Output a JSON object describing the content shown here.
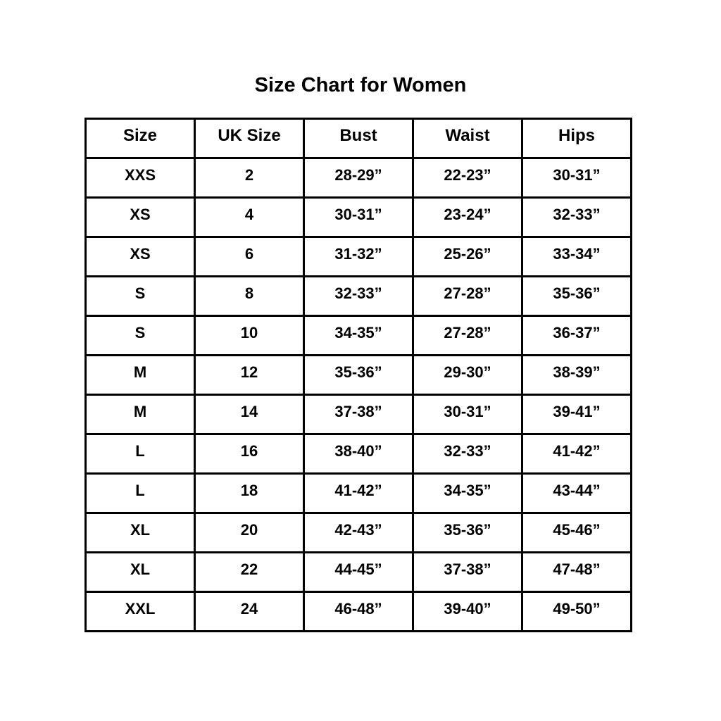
{
  "title": "Size Chart for Women",
  "table": {
    "headers": [
      "Size",
      "UK Size",
      "Bust",
      "Waist",
      "Hips"
    ],
    "rows": [
      [
        "XXS",
        "2",
        "28-29”",
        "22-23”",
        "30-31”"
      ],
      [
        "XS",
        "4",
        "30-31”",
        "23-24”",
        "32-33”"
      ],
      [
        "XS",
        "6",
        "31-32”",
        "25-26”",
        "33-34”"
      ],
      [
        "S",
        "8",
        "32-33”",
        "27-28”",
        "35-36”"
      ],
      [
        "S",
        "10",
        "34-35”",
        "27-28”",
        "36-37”"
      ],
      [
        "M",
        "12",
        "35-36”",
        "29-30”",
        "38-39”"
      ],
      [
        "M",
        "14",
        "37-38”",
        "30-31”",
        "39-41”"
      ],
      [
        "L",
        "16",
        "38-40”",
        "32-33”",
        "41-42”"
      ],
      [
        "L",
        "18",
        "41-42”",
        "34-35”",
        "43-44”"
      ],
      [
        "XL",
        "20",
        "42-43”",
        "35-36”",
        "45-46”"
      ],
      [
        "XL",
        "22",
        "44-45”",
        "37-38”",
        "47-48”"
      ],
      [
        "XXL",
        "24",
        "46-48”",
        "39-40”",
        "49-50”"
      ]
    ]
  },
  "chart_data": {
    "type": "table",
    "title": "Size Chart for Women",
    "columns": [
      "Size",
      "UK Size",
      "Bust",
      "Waist",
      "Hips"
    ],
    "rows": [
      {
        "size": "XXS",
        "uk_size": "2",
        "bust": "28-29”",
        "waist": "22-23”",
        "hips": "30-31”"
      },
      {
        "size": "XS",
        "uk_size": "4",
        "bust": "30-31”",
        "waist": "23-24”",
        "hips": "32-33”"
      },
      {
        "size": "XS",
        "uk_size": "6",
        "bust": "31-32”",
        "waist": "25-26”",
        "hips": "33-34”"
      },
      {
        "size": "S",
        "uk_size": "8",
        "bust": "32-33”",
        "waist": "27-28”",
        "hips": "35-36”"
      },
      {
        "size": "S",
        "uk_size": "10",
        "bust": "34-35”",
        "waist": "27-28”",
        "hips": "36-37”"
      },
      {
        "size": "M",
        "uk_size": "12",
        "bust": "35-36”",
        "waist": "29-30”",
        "hips": "38-39”"
      },
      {
        "size": "M",
        "uk_size": "14",
        "bust": "37-38”",
        "waist": "30-31”",
        "hips": "39-41”"
      },
      {
        "size": "L",
        "uk_size": "16",
        "bust": "38-40”",
        "waist": "32-33”",
        "hips": "41-42”"
      },
      {
        "size": "L",
        "uk_size": "18",
        "bust": "41-42”",
        "waist": "34-35”",
        "hips": "43-44”"
      },
      {
        "size": "XL",
        "uk_size": "20",
        "bust": "42-43”",
        "waist": "35-36”",
        "hips": "45-46”"
      },
      {
        "size": "XL",
        "uk_size": "22",
        "bust": "44-45”",
        "waist": "37-38”",
        "hips": "47-48”"
      },
      {
        "size": "XXL",
        "uk_size": "24",
        "bust": "46-48”",
        "waist": "39-40”",
        "hips": "49-50”"
      }
    ]
  },
  "colors": {
    "background": "#ffffff",
    "border": "#000000",
    "text": "#000000"
  }
}
